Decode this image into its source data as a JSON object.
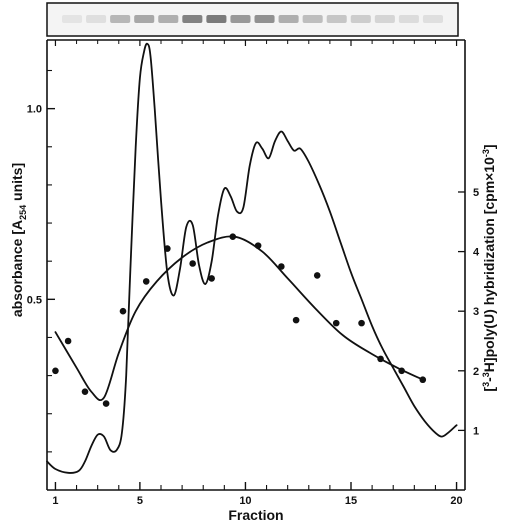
{
  "chart_data": {
    "type": "line",
    "title": "",
    "xlabel": "Fraction",
    "ylabel": "absorbance [A254 units]",
    "ylabel_parts": {
      "main": "absorbance [A",
      "sub": "254",
      "tail": " units]"
    },
    "y2label": "[3-3H]poly(U) hybridization [cpm×10-3]",
    "y2label_parts": {
      "pre": "[",
      "sup": "3",
      "mid": "-",
      "sup2": "3",
      "tail": "H]poly(U) hybridization [cpm×10",
      "sup3": "-3",
      "end": "]"
    },
    "xlim": [
      0.6,
      20.4
    ],
    "ylim": [
      0.0,
      1.18
    ],
    "y2lim": [
      0,
      7.55
    ],
    "x_ticks": [
      1,
      5,
      10,
      15,
      20
    ],
    "x_ticks_minor": [
      2,
      3,
      4,
      6,
      7,
      8,
      9,
      11,
      12,
      13,
      14,
      16,
      17,
      18,
      19
    ],
    "y_ticks": [
      0.5,
      1.0
    ],
    "y_tick_labels": [
      "0.5",
      "1.0"
    ],
    "y_ticks_minor": [
      0.1,
      0.2,
      0.3,
      0.4,
      0.6,
      0.7,
      0.8,
      0.9,
      1.1
    ],
    "y2_ticks": [
      1,
      2,
      3,
      4,
      5
    ],
    "y2_tick_labels": [
      "1",
      "2",
      "3",
      "4",
      "5"
    ],
    "grid": false,
    "legend": "none",
    "gel_bands": [
      0.05,
      0.08,
      0.35,
      0.45,
      0.4,
      0.7,
      0.75,
      0.55,
      0.6,
      0.4,
      0.3,
      0.25,
      0.2,
      0.15,
      0.1,
      0.08
    ],
    "series": [
      {
        "axis": "left",
        "style": "line",
        "x": [
          0.6,
          1.0,
          1.6,
          2.1,
          2.4,
          2.7,
          3.0,
          3.3,
          3.6,
          3.9,
          4.15,
          4.35,
          4.55,
          4.8,
          5.0,
          5.2,
          5.35,
          5.5,
          5.7,
          6.0,
          6.3,
          6.6,
          6.9,
          7.2,
          7.5,
          7.8,
          8.1,
          8.4,
          8.7,
          9.0,
          9.3,
          9.6,
          9.9,
          10.2,
          10.5,
          10.8,
          11.1,
          11.4,
          11.7,
          12.0,
          12.3,
          12.6,
          13.0,
          13.5,
          14.0,
          14.5,
          15.0,
          15.5,
          16.0,
          16.5,
          17.0,
          17.5,
          18.0,
          18.5,
          19.0,
          19.3,
          19.6,
          20.0
        ],
        "y": [
          0.075,
          0.055,
          0.045,
          0.05,
          0.075,
          0.115,
          0.145,
          0.14,
          0.105,
          0.105,
          0.15,
          0.3,
          0.58,
          0.9,
          1.08,
          1.15,
          1.17,
          1.14,
          1.0,
          0.76,
          0.57,
          0.51,
          0.58,
          0.69,
          0.695,
          0.59,
          0.54,
          0.6,
          0.72,
          0.79,
          0.77,
          0.73,
          0.74,
          0.85,
          0.91,
          0.895,
          0.87,
          0.915,
          0.94,
          0.915,
          0.89,
          0.895,
          0.86,
          0.8,
          0.73,
          0.65,
          0.57,
          0.5,
          0.43,
          0.37,
          0.32,
          0.27,
          0.22,
          0.18,
          0.15,
          0.14,
          0.15,
          0.17
        ]
      },
      {
        "axis": "right",
        "style": "points",
        "x": [
          1.0,
          1.6,
          2.4,
          3.4,
          4.2,
          5.3,
          6.3,
          7.5,
          8.4,
          9.4,
          10.6,
          11.7,
          12.4,
          13.4,
          14.3,
          15.5,
          16.4,
          17.4,
          18.4
        ],
        "y": [
          2.0,
          2.5,
          1.65,
          1.45,
          3.0,
          3.5,
          4.05,
          3.8,
          3.55,
          4.25,
          4.1,
          3.75,
          2.85,
          3.6,
          2.8,
          2.8,
          2.2,
          2.0,
          1.85
        ]
      },
      {
        "axis": "right",
        "style": "line",
        "x": [
          1.0,
          2.0,
          2.7,
          3.3,
          4.0,
          4.8,
          5.8,
          7.0,
          8.2,
          9.5,
          10.8,
          12.0,
          13.3,
          14.6,
          15.9,
          17.2,
          18.4
        ],
        "y": [
          2.65,
          2.05,
          1.65,
          1.55,
          2.3,
          3.0,
          3.5,
          3.9,
          4.15,
          4.25,
          4.0,
          3.55,
          3.05,
          2.6,
          2.3,
          2.05,
          1.85
        ]
      }
    ]
  }
}
